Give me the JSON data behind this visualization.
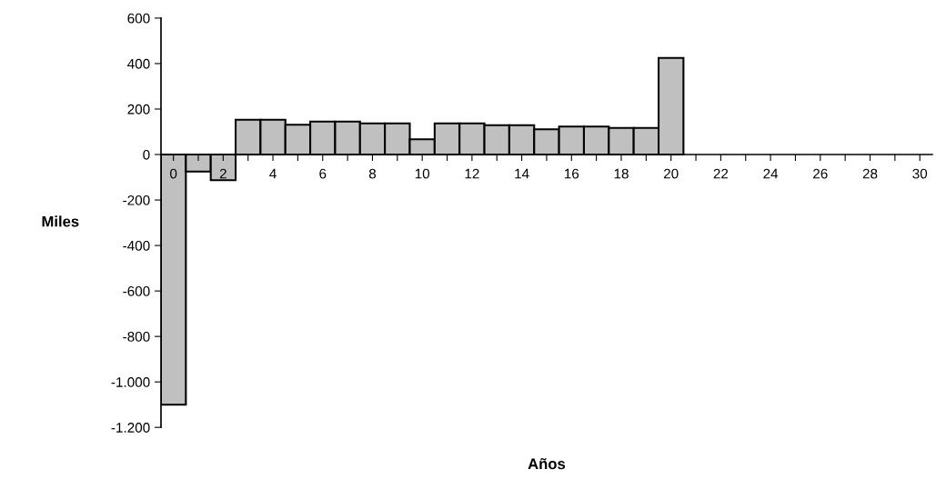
{
  "chart_data": {
    "type": "bar",
    "xlabel": "Años",
    "ylabel": "Miles",
    "categories": [
      "0",
      null,
      "2",
      null,
      "4",
      null,
      "6",
      null,
      "8",
      null,
      "10",
      null,
      "12",
      null,
      "14",
      null,
      "16",
      null,
      "18",
      null,
      "20",
      null,
      "22",
      null,
      "24",
      null,
      "26",
      null,
      "28",
      null,
      "30"
    ],
    "values": [
      -1100,
      -75,
      -113,
      153,
      153,
      131,
      145,
      145,
      137,
      137,
      67,
      137,
      137,
      129,
      129,
      111,
      123,
      123,
      117,
      117,
      425,
      null,
      null,
      null,
      null,
      null,
      null,
      null,
      null,
      null,
      null
    ],
    "color": "#c0c0c0",
    "ylim": [
      -1200,
      600
    ],
    "yticks": [
      {
        "value": -1200,
        "label": "-1.200"
      },
      {
        "value": -1000,
        "label": "-1.000"
      },
      -800,
      -600,
      -400,
      -200,
      0,
      200,
      400,
      600
    ],
    "grid": false
  }
}
